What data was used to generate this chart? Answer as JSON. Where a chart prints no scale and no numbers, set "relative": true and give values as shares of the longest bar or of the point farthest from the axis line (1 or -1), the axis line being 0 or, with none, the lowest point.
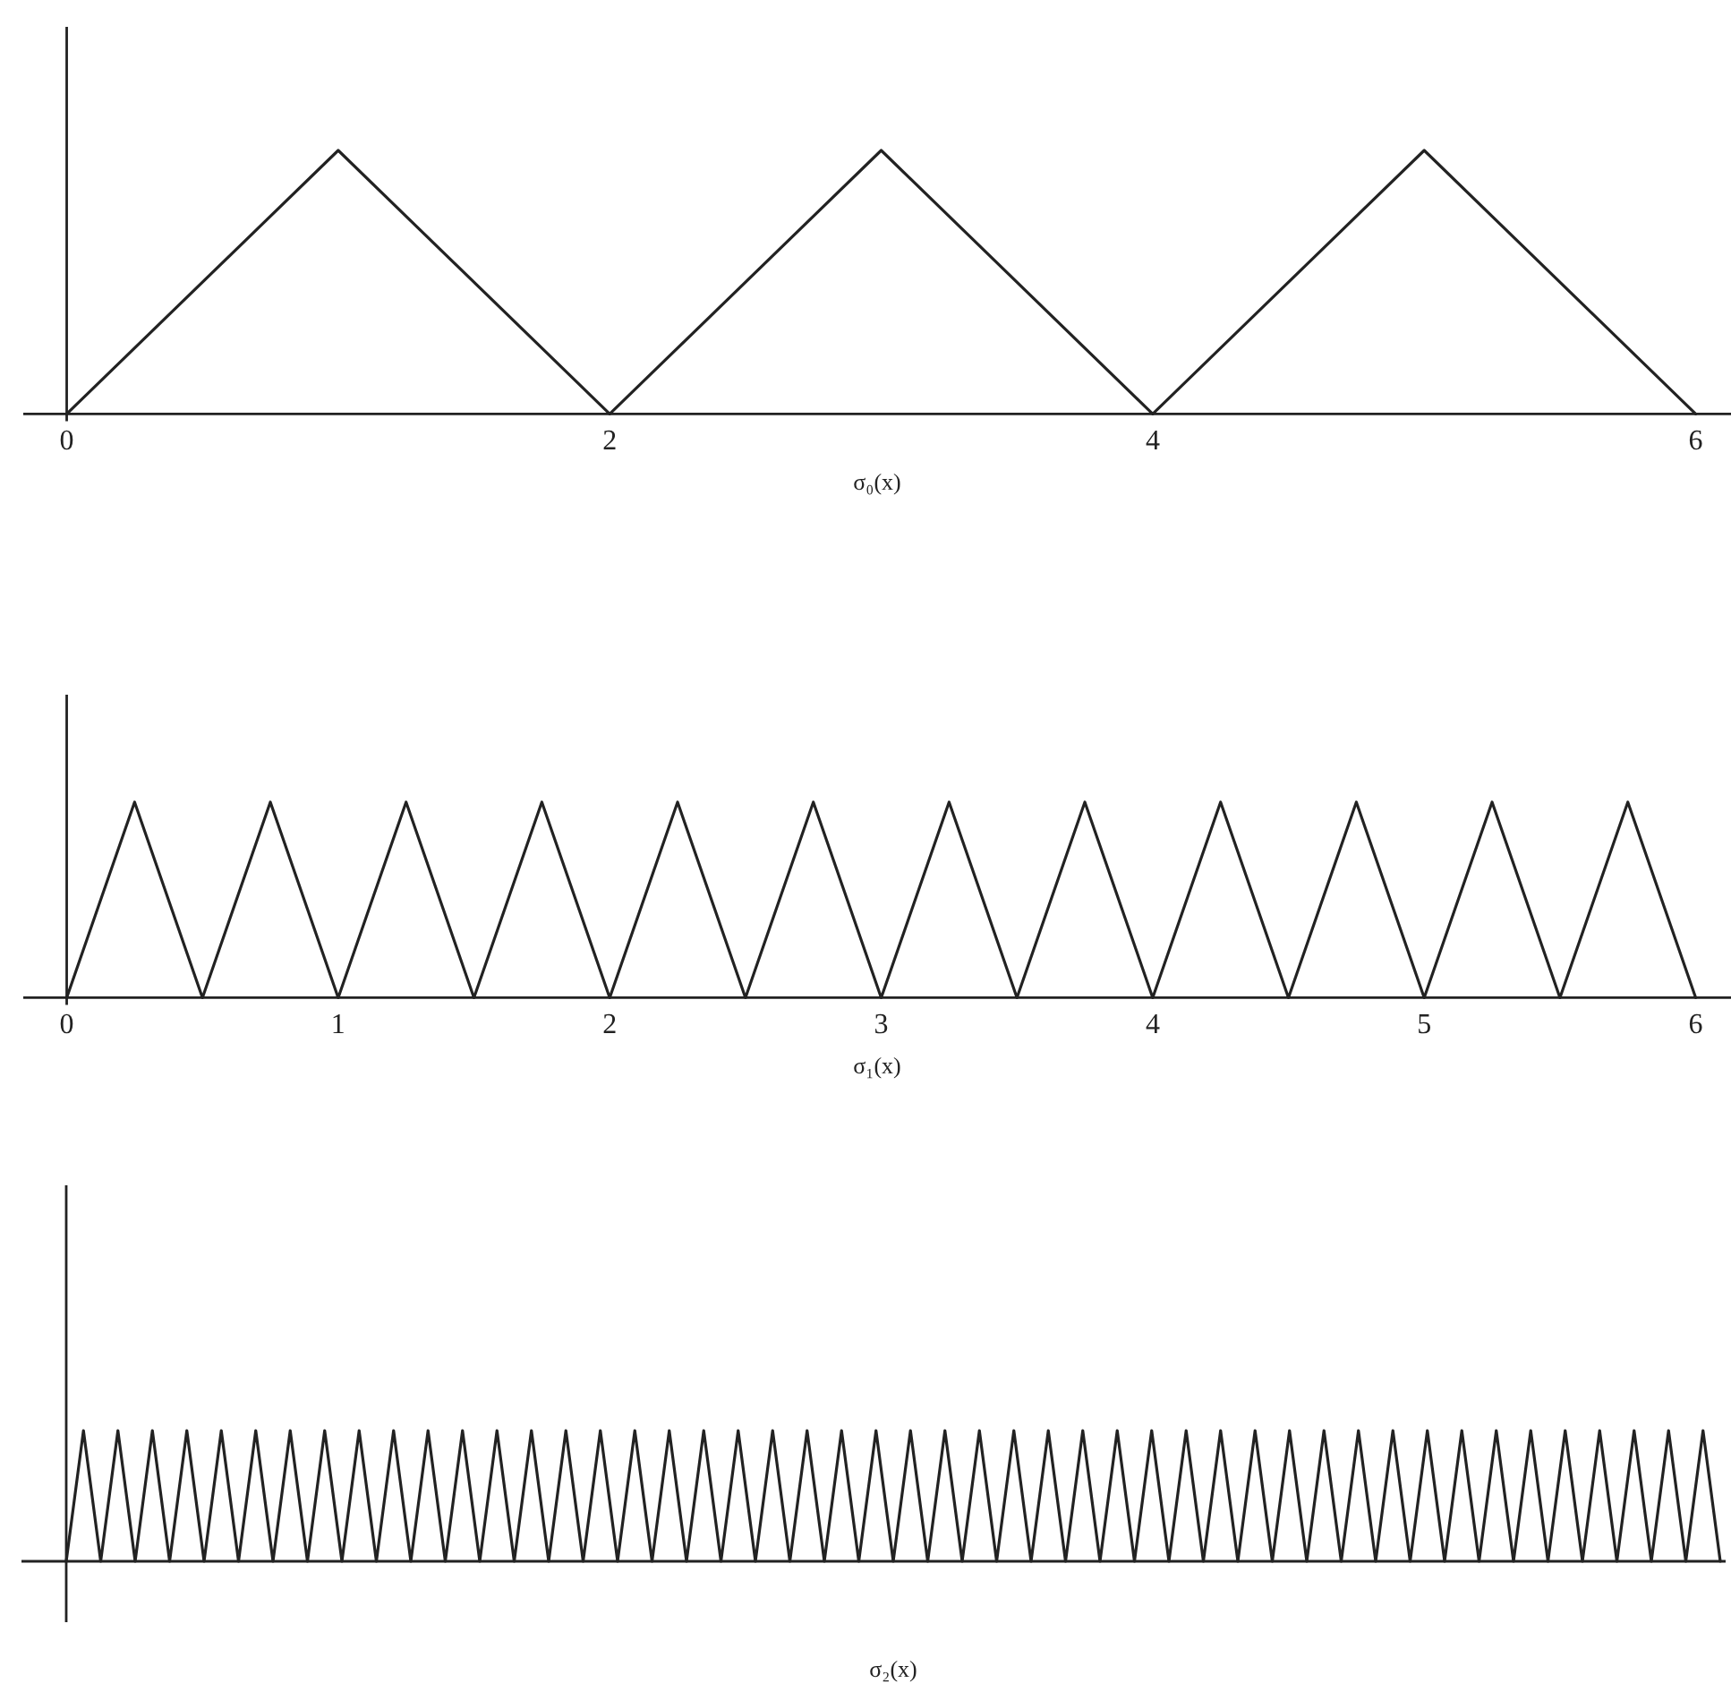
{
  "chart_data": [
    {
      "type": "line",
      "xlabel": "σ₀(x)",
      "x": [
        0,
        1,
        2,
        3,
        4,
        5,
        6
      ],
      "values": [
        0,
        1,
        0,
        1,
        0,
        1,
        0
      ],
      "color": "#222222",
      "relative": true,
      "xlim": [
        -0.16,
        6.13
      ],
      "xticks": [
        0,
        2,
        4,
        6
      ]
    },
    {
      "type": "line",
      "xlabel": "σ₁(x)",
      "x": [
        0,
        0.25,
        0.5,
        0.75,
        1,
        1.25,
        1.5,
        1.75,
        2,
        2.25,
        2.5,
        2.75,
        3,
        3.25,
        3.5,
        3.75,
        4,
        4.25,
        4.5,
        4.75,
        5,
        5.25,
        5.5,
        5.75,
        6
      ],
      "values": [
        0,
        1,
        0,
        1,
        0,
        1,
        0,
        1,
        0,
        1,
        0,
        1,
        0,
        1,
        0,
        1,
        0,
        1,
        0,
        1,
        0,
        1,
        0,
        1,
        0
      ],
      "color": "#222222",
      "relative": true,
      "xlim": [
        -0.16,
        6.13
      ],
      "xticks": [
        0,
        1,
        2,
        3,
        4,
        5,
        6
      ]
    },
    {
      "type": "line",
      "xlabel": "σ₂(x)",
      "categories": [
        null,
        null,
        null,
        null,
        null,
        null,
        null,
        null,
        null,
        null,
        null,
        null,
        null,
        null,
        null,
        null,
        null,
        null,
        null,
        null,
        null,
        null,
        null,
        null,
        null,
        null,
        null,
        null,
        null,
        null,
        null,
        null,
        null,
        null,
        null,
        null,
        null,
        null,
        null,
        null,
        null,
        null,
        null,
        null,
        null,
        null,
        null,
        null,
        null,
        null,
        null,
        null,
        null,
        null,
        null,
        null,
        null,
        null,
        null,
        null,
        null,
        null,
        null,
        null,
        null,
        null,
        null,
        null,
        null,
        null,
        null,
        null,
        null,
        null,
        null,
        null,
        null,
        null,
        null,
        null,
        null,
        null,
        null,
        null,
        null,
        null,
        null,
        null,
        null,
        null,
        null,
        null,
        null,
        null,
        null,
        null,
        null
      ],
      "values": [
        0,
        1,
        0,
        1,
        0,
        1,
        0,
        1,
        0,
        1,
        0,
        1,
        0,
        1,
        0,
        1,
        0,
        1,
        0,
        1,
        0,
        1,
        0,
        1,
        0,
        1,
        0,
        1,
        0,
        1,
        0,
        1,
        0,
        1,
        0,
        1,
        0,
        1,
        0,
        1,
        0,
        1,
        0,
        1,
        0,
        1,
        0,
        1,
        0,
        1,
        0,
        1,
        0,
        1,
        0,
        1,
        0,
        1,
        0,
        1,
        0,
        1,
        0,
        1,
        0,
        1,
        0,
        1,
        0,
        1,
        0,
        1,
        0,
        1,
        0,
        1,
        0,
        1,
        0,
        1,
        0,
        1,
        0,
        1,
        0,
        1,
        0,
        1,
        0,
        1,
        0,
        1,
        0,
        1,
        0,
        1,
        0
      ],
      "color": "#222222",
      "relative": true
    }
  ]
}
